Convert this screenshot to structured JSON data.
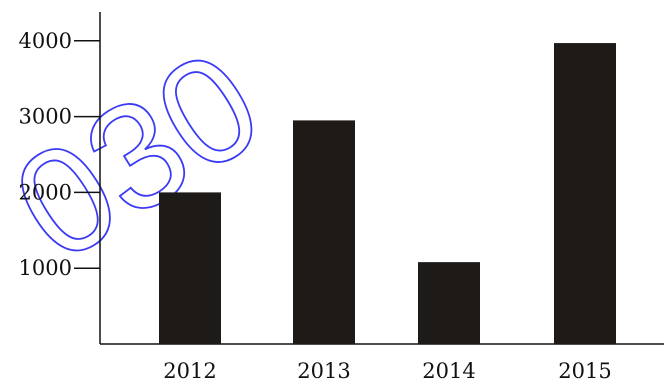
{
  "chart_data": {
    "type": "bar",
    "categories": [
      "2012",
      "2013",
      "2014",
      "2015"
    ],
    "values": [
      2000,
      2950,
      1080,
      3970
    ],
    "y_ticks": [
      "1000",
      "2000",
      "3000",
      "4000"
    ],
    "title": "",
    "xlabel": "",
    "ylabel": "",
    "ylim": [
      0,
      4000
    ],
    "grid": false,
    "legend": "none"
  },
  "watermark": {
    "text": "030",
    "color": "#3b3bf5"
  },
  "colors": {
    "bar": "#1e1a18",
    "axis": "#111111"
  }
}
